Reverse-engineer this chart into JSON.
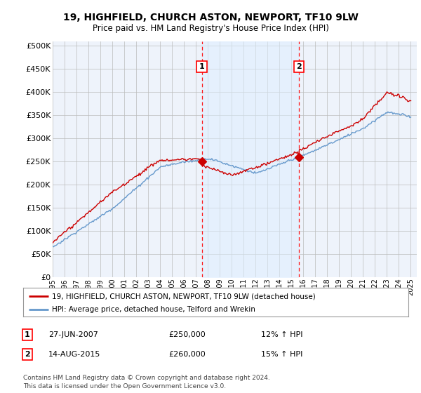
{
  "title1": "19, HIGHFIELD, CHURCH ASTON, NEWPORT, TF10 9LW",
  "title2": "Price paid vs. HM Land Registry's House Price Index (HPI)",
  "ytick_values": [
    0,
    50000,
    100000,
    150000,
    200000,
    250000,
    300000,
    350000,
    400000,
    450000,
    500000
  ],
  "xlim_start": 1995.0,
  "xlim_end": 2025.5,
  "ylim_min": 0,
  "ylim_max": 510000,
  "sale1_date": 2007.49,
  "sale1_price": 250000,
  "sale1_label": "1",
  "sale1_text": "27-JUN-2007",
  "sale1_amount": "£250,000",
  "sale1_hpi": "12% ↑ HPI",
  "sale2_date": 2015.62,
  "sale2_price": 260000,
  "sale2_label": "2",
  "sale2_text": "14-AUG-2015",
  "sale2_amount": "£260,000",
  "sale2_hpi": "15% ↑ HPI",
  "property_line_color": "#cc0000",
  "hpi_line_color": "#6699cc",
  "hpi_fill_color": "#ddeeff",
  "background_color": "#eef3fb",
  "grid_color": "#bbbbbb",
  "legend_property": "19, HIGHFIELD, CHURCH ASTON, NEWPORT, TF10 9LW (detached house)",
  "legend_hpi": "HPI: Average price, detached house, Telford and Wrekin",
  "footer": "Contains HM Land Registry data © Crown copyright and database right 2024.\nThis data is licensed under the Open Government Licence v3.0.",
  "xtick_years": [
    1995,
    1996,
    1997,
    1998,
    1999,
    2000,
    2001,
    2002,
    2003,
    2004,
    2005,
    2006,
    2007,
    2008,
    2009,
    2010,
    2011,
    2012,
    2013,
    2014,
    2015,
    2016,
    2017,
    2018,
    2019,
    2020,
    2021,
    2022,
    2023,
    2024,
    2025
  ]
}
